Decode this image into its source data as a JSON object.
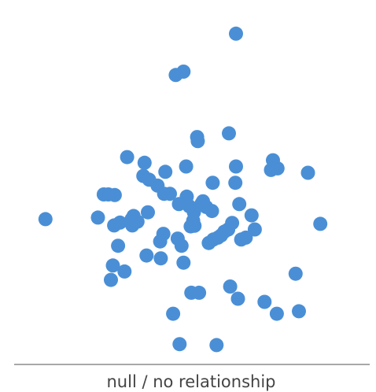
{
  "chart_data": {
    "type": "scatter",
    "title": "",
    "xlabel": "null / no relationship",
    "ylabel": "",
    "grid": false,
    "legend": "none",
    "marker_color": "#4a8fd6",
    "axis_color": "#8c8c8c",
    "xlim": [
      0,
      100
    ],
    "ylim": [
      0,
      100
    ],
    "points": [
      {
        "x": 4.8,
        "y": 40.6
      },
      {
        "x": 21.0,
        "y": 41.1
      },
      {
        "x": 22.8,
        "y": 48.5
      },
      {
        "x": 24.2,
        "y": 48.5
      },
      {
        "x": 25.0,
        "y": 21.2
      },
      {
        "x": 25.6,
        "y": 25.8
      },
      {
        "x": 26.0,
        "y": 38.6
      },
      {
        "x": 26.2,
        "y": 48.3
      },
      {
        "x": 27.2,
        "y": 32.1
      },
      {
        "x": 27.8,
        "y": 39.5
      },
      {
        "x": 29.2,
        "y": 23.9
      },
      {
        "x": 30.0,
        "y": 60.4
      },
      {
        "x": 31.4,
        "y": 40.6
      },
      {
        "x": 31.6,
        "y": 38.6
      },
      {
        "x": 32.0,
        "y": 41.6
      },
      {
        "x": 33.2,
        "y": 39.8
      },
      {
        "x": 35.0,
        "y": 54.4
      },
      {
        "x": 35.4,
        "y": 58.6
      },
      {
        "x": 36.0,
        "y": 29.0
      },
      {
        "x": 36.4,
        "y": 42.8
      },
      {
        "x": 36.8,
        "y": 53.2
      },
      {
        "x": 39.4,
        "y": 51.3
      },
      {
        "x": 40.2,
        "y": 33.5
      },
      {
        "x": 40.4,
        "y": 28.1
      },
      {
        "x": 41.2,
        "y": 35.9
      },
      {
        "x": 41.4,
        "y": 48.7
      },
      {
        "x": 41.8,
        "y": 55.7
      },
      {
        "x": 43.2,
        "y": 48.7
      },
      {
        "x": 44.2,
        "y": 10.4
      },
      {
        "x": 45.0,
        "y": 86.6
      },
      {
        "x": 45.6,
        "y": 34.4
      },
      {
        "x": 46.0,
        "y": 45.4
      },
      {
        "x": 46.2,
        "y": 0.7
      },
      {
        "x": 46.8,
        "y": 32.1
      },
      {
        "x": 47.4,
        "y": 87.7
      },
      {
        "x": 47.4,
        "y": 26.7
      },
      {
        "x": 48.2,
        "y": 57.4
      },
      {
        "x": 48.4,
        "y": 47.8
      },
      {
        "x": 49.2,
        "y": 44.7
      },
      {
        "x": 49.6,
        "y": 38.3
      },
      {
        "x": 49.8,
        "y": 17.1
      },
      {
        "x": 50.4,
        "y": 40.1
      },
      {
        "x": 50.6,
        "y": 42.8
      },
      {
        "x": 50.8,
        "y": 38.5
      },
      {
        "x": 51.6,
        "y": 66.8
      },
      {
        "x": 51.8,
        "y": 65.5
      },
      {
        "x": 52.2,
        "y": 17.1
      },
      {
        "x": 53.0,
        "y": 45.6
      },
      {
        "x": 53.4,
        "y": 46.3
      },
      {
        "x": 54.4,
        "y": 44.5
      },
      {
        "x": 55.2,
        "y": 33.0
      },
      {
        "x": 56.2,
        "y": 43.2
      },
      {
        "x": 56.4,
        "y": 52.2
      },
      {
        "x": 56.6,
        "y": 34.1
      },
      {
        "x": 57.6,
        "y": 0.4
      },
      {
        "x": 58.0,
        "y": 34.7
      },
      {
        "x": 59.0,
        "y": 35.4
      },
      {
        "x": 60.0,
        "y": 36.6
      },
      {
        "x": 61.2,
        "y": 37.3
      },
      {
        "x": 61.4,
        "y": 68.0
      },
      {
        "x": 61.8,
        "y": 19.1
      },
      {
        "x": 62.4,
        "y": 39.4
      },
      {
        "x": 63.4,
        "y": 52.2
      },
      {
        "x": 63.6,
        "y": 57.4
      },
      {
        "x": 63.6,
        "y": 99.8
      },
      {
        "x": 64.2,
        "y": 15.2
      },
      {
        "x": 64.6,
        "y": 45.4
      },
      {
        "x": 65.2,
        "y": 34.1
      },
      {
        "x": 66.6,
        "y": 34.7
      },
      {
        "x": 68.4,
        "y": 41.8
      },
      {
        "x": 69.4,
        "y": 37.3
      },
      {
        "x": 72.4,
        "y": 14.2
      },
      {
        "x": 74.4,
        "y": 56.3
      },
      {
        "x": 75.0,
        "y": 59.4
      },
      {
        "x": 76.2,
        "y": 10.4
      },
      {
        "x": 76.4,
        "y": 56.8
      },
      {
        "x": 82.0,
        "y": 23.2
      },
      {
        "x": 83.0,
        "y": 11.2
      },
      {
        "x": 85.8,
        "y": 55.4
      },
      {
        "x": 89.6,
        "y": 39.1
      }
    ]
  }
}
